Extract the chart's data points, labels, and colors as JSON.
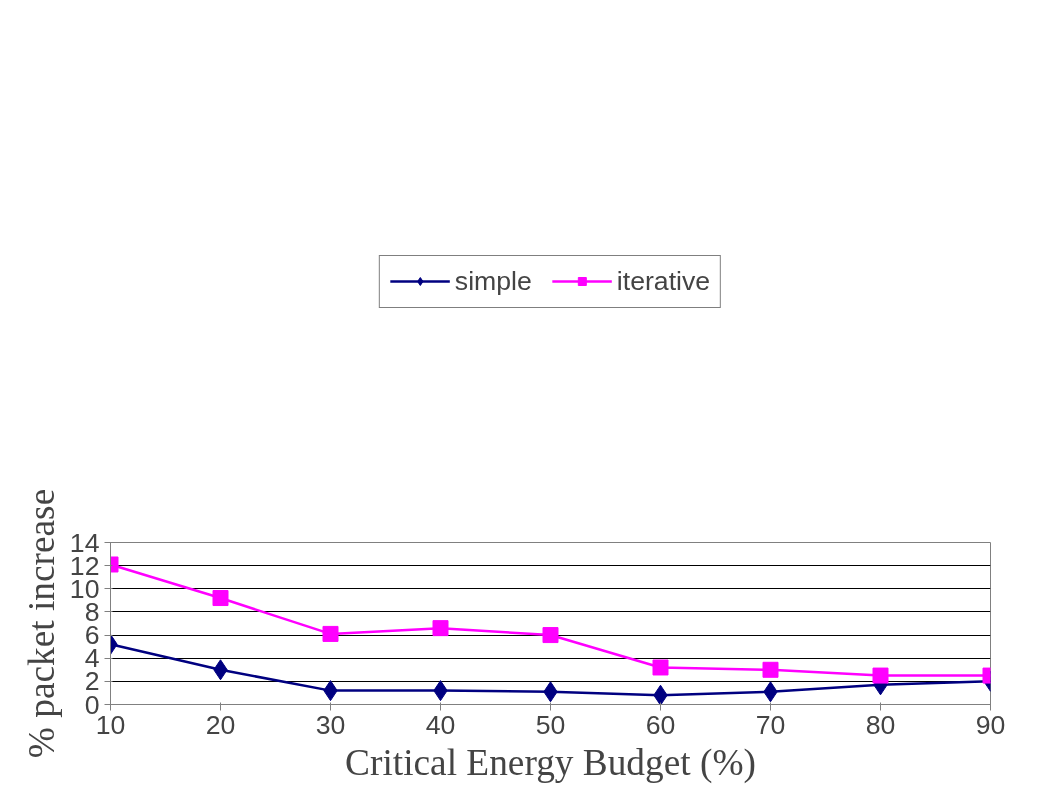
{
  "chart_data": {
    "type": "line",
    "xlabel": "Critical Energy Budget (%)",
    "ylabel": "% packet increase",
    "x": [
      10,
      20,
      30,
      40,
      50,
      60,
      70,
      80,
      90
    ],
    "series": [
      {
        "name": "simple",
        "color": "#000080",
        "values": [
          5.2,
          3.0,
          1.2,
          1.2,
          1.1,
          0.8,
          1.1,
          1.7,
          2.0
        ],
        "marker": "diamond"
      },
      {
        "name": "iterative",
        "color": "#ff00ff",
        "values": [
          12.1,
          9.2,
          6.1,
          6.6,
          6.0,
          3.2,
          3.0,
          2.5,
          2.5
        ],
        "marker": "square"
      }
    ],
    "xlim": [
      10,
      90
    ],
    "xticks": [
      10,
      20,
      30,
      40,
      50,
      60,
      70,
      80,
      90
    ],
    "ylim": [
      0,
      14
    ],
    "yticks": [
      0,
      2,
      4,
      6,
      8,
      10,
      12,
      14
    ],
    "grid": "y",
    "legend": "top",
    "line_style": "solid"
  }
}
